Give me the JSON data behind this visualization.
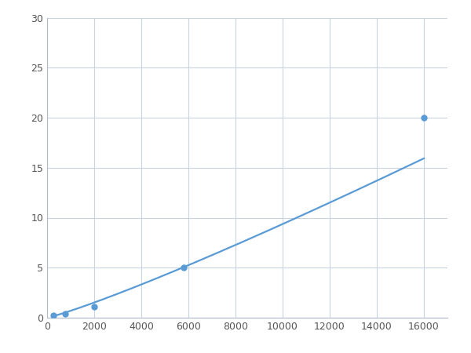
{
  "x": [
    250,
    750,
    2000,
    5800,
    16000
  ],
  "y": [
    0.2,
    0.4,
    1.1,
    5.0,
    20.0
  ],
  "line_color": "#5b9bd5",
  "marker_color": "#5b9bd5",
  "marker_size": 5,
  "line_width": 1.6,
  "xlim": [
    0,
    17000
  ],
  "ylim": [
    0,
    30
  ],
  "xticks": [
    0,
    2000,
    4000,
    6000,
    8000,
    10000,
    12000,
    14000,
    16000
  ],
  "yticks": [
    0,
    5,
    10,
    15,
    20,
    25,
    30
  ],
  "grid_color": "#c8d4e0",
  "background_color": "#ffffff",
  "figure_background": "#ffffff"
}
